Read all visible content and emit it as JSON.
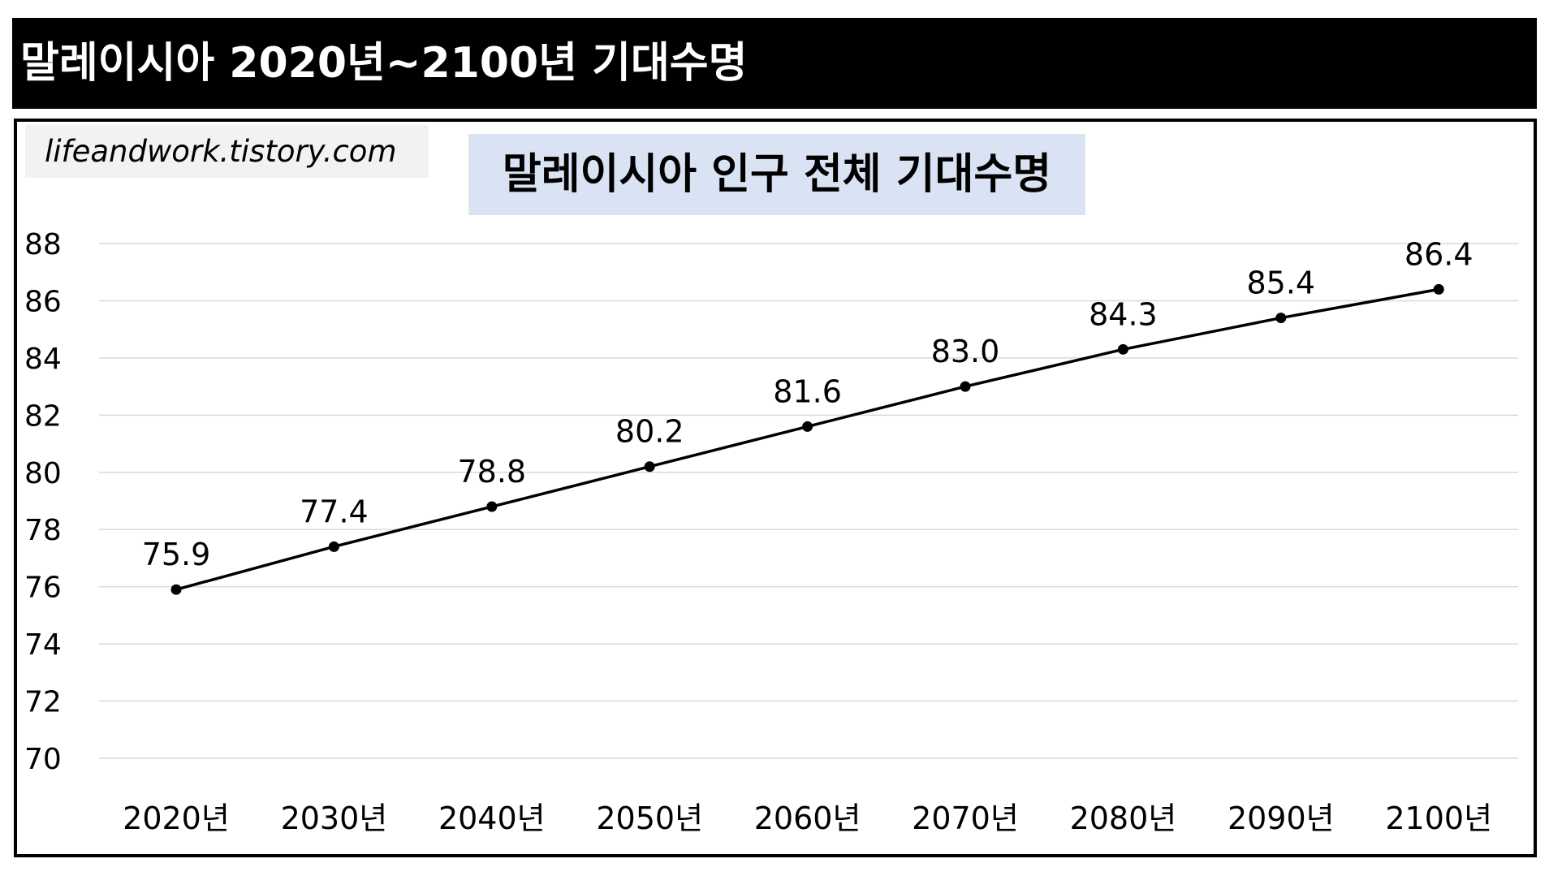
{
  "header": {
    "title": "말레이시아 2020년~2100년 기대수명"
  },
  "watermark": "lifeandwork.tistory.com",
  "colors": {
    "header_bg": "#000000",
    "title_bg": "#dae3f3",
    "line": "#000000",
    "grid": "#d9d9d9"
  },
  "chart_data": {
    "type": "line",
    "title": "말레이시아 인구 전체 기대수명",
    "xlabel": "",
    "ylabel": "",
    "categories": [
      "2020년",
      "2030년",
      "2040년",
      "2050년",
      "2060년",
      "2070년",
      "2080년",
      "2090년",
      "2100년"
    ],
    "values": [
      75.9,
      77.4,
      78.8,
      80.2,
      81.6,
      83.0,
      84.3,
      85.4,
      86.4
    ],
    "data_labels": [
      "75.9",
      "77.4",
      "78.8",
      "80.2",
      "81.6",
      "83.0",
      "84.3",
      "85.4",
      "86.4"
    ],
    "ylim": [
      70,
      88
    ],
    "yticks": [
      70,
      72,
      74,
      76,
      78,
      80,
      82,
      84,
      86,
      88
    ],
    "grid": true,
    "legend": "none",
    "markers": true
  }
}
